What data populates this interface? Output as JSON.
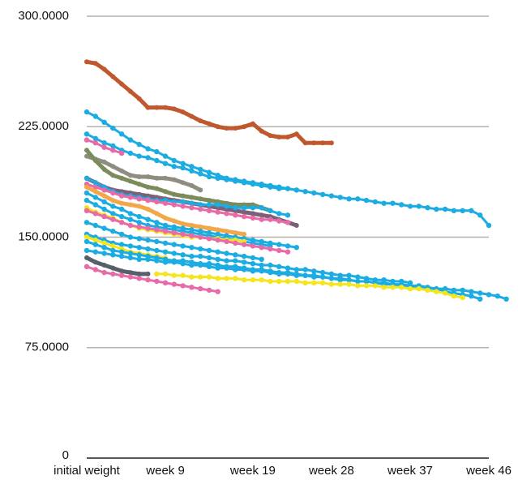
{
  "chart_data": {
    "type": "line",
    "title": "",
    "xlabel": "",
    "ylabel": "",
    "ylim": [
      0,
      300
    ],
    "xlim": [
      0,
      46
    ],
    "y_ticks": [
      {
        "value": 0,
        "label": "0"
      },
      {
        "value": 75,
        "label": "75.0000"
      },
      {
        "value": 150,
        "label": "150.0000"
      },
      {
        "value": 225,
        "label": "225.0000"
      },
      {
        "value": 300,
        "label": "300.0000"
      }
    ],
    "x_ticks": [
      {
        "value": 0,
        "label": "initial weight"
      },
      {
        "value": 9,
        "label": "week 9"
      },
      {
        "value": 19,
        "label": "week 19"
      },
      {
        "value": 28,
        "label": "week 28"
      },
      {
        "value": 37,
        "label": "week 37"
      },
      {
        "value": 46,
        "label": "week 46"
      }
    ],
    "grid": true,
    "legend": "none",
    "series": [
      {
        "color": "#c0582f",
        "width": 5,
        "x": [
          0,
          1,
          2,
          3,
          4,
          5,
          6,
          7,
          8,
          9,
          10,
          11,
          12,
          13,
          14,
          15,
          16,
          17,
          18,
          19,
          20,
          21,
          22,
          23,
          24,
          25,
          26,
          27,
          28
        ],
        "y": [
          269,
          268,
          264,
          259,
          254,
          249,
          244,
          238,
          238,
          238,
          237,
          235,
          232,
          229,
          227,
          225,
          224,
          224,
          225,
          227,
          222,
          219,
          218,
          218,
          220,
          214,
          214,
          214,
          214
        ]
      },
      {
        "color": "#1bace2",
        "width": 3,
        "x": [
          0,
          1,
          2,
          3,
          4,
          5,
          6,
          7,
          8,
          9,
          10,
          11,
          12,
          13,
          14,
          15,
          16,
          17,
          18,
          19,
          20,
          21,
          22,
          23,
          24,
          25,
          26,
          27,
          28,
          29,
          30,
          31,
          32,
          33,
          34,
          35,
          36,
          37,
          38,
          39,
          40,
          41,
          42,
          43,
          44,
          45,
          46
        ],
        "y": [
          235,
          232,
          228,
          224,
          220,
          216,
          213,
          210,
          208,
          205,
          202,
          200,
          198,
          196,
          194,
          192,
          190,
          189,
          188,
          187,
          186,
          185,
          184,
          183,
          182,
          181,
          180,
          179,
          178,
          177,
          176,
          176,
          175,
          174,
          173,
          173,
          172,
          171,
          171,
          170,
          169,
          169,
          168,
          168,
          168,
          165,
          158
        ]
      },
      {
        "color": "#1bace2",
        "width": 3,
        "x": [
          0,
          1,
          2,
          3,
          4,
          5,
          6,
          7,
          8,
          9,
          10,
          11,
          12,
          13,
          14,
          15,
          16,
          17,
          18,
          19,
          20,
          21,
          22,
          23,
          24
        ],
        "y": [
          220,
          217,
          214,
          212,
          209,
          207,
          205,
          204,
          202,
          200,
          198,
          197,
          195,
          193,
          191,
          190,
          189,
          188,
          187,
          186,
          185,
          184,
          183,
          183,
          182
        ]
      },
      {
        "color": "#e96aa8",
        "width": 3,
        "x": [
          0,
          1,
          2,
          3,
          4
        ],
        "y": [
          216,
          214,
          211,
          209,
          207
        ]
      },
      {
        "color": "#8f8c80",
        "width": 5,
        "x": [
          0,
          1,
          2,
          3,
          4,
          5,
          6,
          7,
          8,
          9,
          10,
          11,
          12,
          13
        ],
        "y": [
          205,
          203,
          201,
          198,
          195,
          192,
          191,
          191,
          190,
          190,
          189,
          187,
          185,
          182
        ]
      },
      {
        "color": "#7b8b5a",
        "width": 5,
        "x": [
          0,
          1,
          2,
          3,
          4,
          5,
          6,
          7,
          8,
          9,
          10,
          11,
          12,
          13,
          14,
          15,
          16,
          17,
          18,
          19,
          20,
          21
        ],
        "y": [
          209,
          202,
          196,
          192,
          190,
          188,
          186,
          184,
          183,
          181,
          179,
          178,
          177,
          176,
          175,
          174,
          173,
          172,
          172,
          172,
          170,
          168
        ]
      },
      {
        "color": "#7e5f78",
        "width": 5,
        "x": [
          0,
          1,
          2,
          3,
          4,
          5,
          6,
          7,
          8,
          9,
          10,
          11,
          12,
          13,
          14,
          15,
          16,
          17,
          18,
          19,
          20,
          21,
          22,
          23,
          24
        ],
        "y": [
          190,
          187,
          184,
          182,
          181,
          180,
          179,
          178,
          177,
          176,
          175,
          174,
          173,
          172,
          171,
          170,
          169,
          168,
          167,
          166,
          165,
          164,
          162,
          160,
          158
        ]
      },
      {
        "color": "#1bace2",
        "width": 3,
        "x": [
          0,
          1,
          2,
          3,
          4,
          5,
          6,
          7,
          8,
          9,
          10,
          11,
          12,
          13,
          14,
          15,
          16,
          17,
          18,
          19,
          20,
          21,
          22,
          23
        ],
        "y": [
          190,
          187,
          184,
          181,
          179,
          178,
          177,
          176,
          175,
          175,
          174,
          174,
          173,
          172,
          172,
          172,
          171,
          170,
          170,
          170,
          170,
          168,
          166,
          165
        ]
      },
      {
        "color": "#e96aa8",
        "width": 3,
        "x": [
          0,
          1,
          2,
          3,
          4,
          5,
          6,
          7,
          8,
          9,
          10,
          11,
          12,
          13,
          14,
          15,
          16,
          17,
          18,
          19,
          20,
          21,
          22,
          23
        ],
        "y": [
          186,
          184,
          182,
          180,
          178,
          177,
          176,
          175,
          174,
          173,
          172,
          171,
          170,
          169,
          168,
          167,
          166,
          165,
          164,
          163,
          162,
          162,
          161,
          160
        ]
      },
      {
        "color": "#f2a84a",
        "width": 5,
        "x": [
          0,
          1,
          2,
          3,
          4,
          5,
          6,
          7,
          8,
          9,
          10,
          11,
          12,
          13,
          14,
          15,
          16,
          17,
          18
        ],
        "y": [
          184,
          181,
          178,
          175,
          173,
          172,
          171,
          169,
          166,
          163,
          161,
          159,
          158,
          157,
          156,
          155,
          154,
          153,
          152
        ]
      },
      {
        "color": "#1bace2",
        "width": 3,
        "x": [
          0,
          1,
          2,
          3,
          4,
          5,
          6,
          7,
          8,
          9,
          10,
          11,
          12,
          13,
          14,
          15,
          16,
          17,
          18,
          19,
          20,
          21,
          22,
          23,
          24
        ],
        "y": [
          180,
          177,
          174,
          171,
          169,
          166,
          164,
          162,
          160,
          158,
          157,
          156,
          155,
          154,
          153,
          152,
          151,
          150,
          149,
          148,
          147,
          146,
          145,
          144,
          143
        ]
      },
      {
        "color": "#1bace2",
        "width": 3,
        "x": [
          0,
          1,
          2,
          3,
          4,
          5,
          6,
          7,
          8,
          9,
          10,
          11,
          12,
          13,
          14,
          15,
          16,
          17,
          18,
          19,
          20,
          21
        ],
        "y": [
          175,
          172,
          169,
          166,
          164,
          162,
          160,
          158,
          157,
          156,
          155,
          154,
          153,
          152,
          151,
          150,
          149,
          148,
          147,
          146,
          145,
          144
        ]
      },
      {
        "color": "#f5e51f",
        "width": 3,
        "x": [
          0,
          1,
          2,
          3,
          4,
          5,
          6,
          7,
          8,
          9,
          10,
          11,
          12,
          13,
          14,
          15,
          16,
          17,
          18
        ],
        "y": [
          170,
          167,
          165,
          163,
          160,
          158,
          156,
          155,
          154,
          153,
          152,
          151,
          150,
          150,
          149,
          149,
          148,
          148,
          147
        ]
      },
      {
        "color": "#e96aa8",
        "width": 3,
        "x": [
          0,
          1,
          2,
          3,
          4,
          5,
          6,
          7,
          8,
          9,
          10,
          11,
          12,
          13,
          14,
          15,
          16,
          17,
          18,
          19,
          20,
          21,
          22,
          23
        ],
        "y": [
          168,
          166,
          164,
          162,
          160,
          158,
          157,
          156,
          155,
          154,
          153,
          152,
          151,
          150,
          149,
          148,
          147,
          146,
          145,
          144,
          143,
          142,
          141,
          140
        ]
      },
      {
        "color": "#1bace2",
        "width": 3,
        "x": [
          0,
          1,
          2,
          3,
          4,
          5,
          6,
          7,
          8,
          9,
          10,
          11,
          12,
          13,
          14,
          15,
          16,
          17,
          18,
          19,
          20
        ],
        "y": [
          160,
          158,
          156,
          154,
          152,
          150,
          149,
          148,
          147,
          146,
          145,
          144,
          143,
          142,
          141,
          140,
          139,
          138,
          137,
          136,
          135
        ]
      },
      {
        "color": "#1bace2",
        "width": 3,
        "x": [
          0,
          1,
          2,
          3,
          4,
          5,
          6,
          7,
          8,
          9,
          10,
          11,
          12,
          13,
          14,
          15,
          16,
          17,
          18,
          19,
          20,
          21,
          22,
          23,
          24,
          25,
          26,
          27,
          28,
          29,
          30,
          31,
          32,
          33,
          34,
          35,
          36,
          37
        ],
        "y": [
          152,
          150,
          148,
          146,
          145,
          144,
          143,
          142,
          141,
          140,
          139,
          138,
          137,
          137,
          136,
          135,
          134,
          134,
          133,
          132,
          131,
          131,
          130,
          129,
          128,
          128,
          127,
          126,
          125,
          124,
          124,
          123,
          122,
          121,
          121,
          120,
          120,
          119
        ]
      },
      {
        "color": "#f5e51f",
        "width": 3,
        "x": [
          0,
          1,
          2,
          3,
          4,
          5,
          6,
          7,
          8,
          9
        ],
        "y": [
          150,
          148,
          146,
          144,
          142,
          140,
          139,
          138,
          137,
          136
        ]
      },
      {
        "color": "#1bace2",
        "width": 3,
        "x": [
          0,
          1,
          2,
          3,
          4,
          5,
          6,
          7,
          8,
          9,
          10,
          11,
          12,
          13,
          14,
          15,
          16,
          17,
          18,
          19,
          20,
          21,
          22,
          23,
          24,
          25,
          26,
          27,
          28,
          29,
          30,
          31,
          32,
          33,
          34,
          35,
          36,
          37,
          38,
          39,
          40,
          41,
          42,
          43,
          44,
          45
        ],
        "y": [
          147,
          145,
          143,
          141,
          140,
          139,
          138,
          137,
          136,
          135,
          134,
          134,
          133,
          132,
          132,
          131,
          130,
          130,
          129,
          128,
          128,
          127,
          126,
          126,
          125,
          124,
          124,
          123,
          122,
          122,
          121,
          120,
          120,
          119,
          118,
          118,
          117,
          116,
          116,
          115,
          114,
          113,
          112,
          111,
          110,
          108
        ]
      },
      {
        "color": "#1bace2",
        "width": 3,
        "x": [
          0,
          1,
          2,
          3,
          4,
          5,
          6,
          7,
          8,
          9,
          10,
          11,
          12,
          13,
          14,
          15,
          16,
          17,
          18,
          19,
          20,
          21,
          22,
          23,
          24,
          25,
          26,
          27,
          28,
          29,
          30,
          31,
          32,
          33,
          34,
          35,
          36,
          37,
          38,
          39,
          40,
          41,
          42,
          43,
          44,
          45,
          46,
          47,
          48
        ],
        "y": [
          141,
          140,
          139,
          138,
          137,
          136,
          135,
          135,
          134,
          133,
          133,
          132,
          131,
          131,
          130,
          129,
          129,
          128,
          128,
          127,
          127,
          126,
          125,
          125,
          124,
          124,
          123,
          123,
          122,
          121,
          121,
          120,
          120,
          119,
          119,
          118,
          118,
          117,
          117,
          116,
          115,
          115,
          114,
          114,
          113,
          112,
          111,
          110,
          108
        ]
      },
      {
        "color": "#f5e51f",
        "width": 3,
        "x": [
          8,
          9,
          10,
          11,
          12,
          13,
          14,
          15,
          16,
          17,
          18,
          19,
          20,
          21,
          22,
          23,
          24,
          25,
          26,
          27,
          28,
          29,
          30,
          31,
          32,
          33,
          34,
          35,
          36,
          37,
          38,
          39,
          40,
          41,
          42,
          43
        ],
        "y": [
          125,
          125,
          124,
          124,
          123,
          123,
          123,
          122,
          122,
          122,
          121,
          121,
          121,
          120,
          120,
          120,
          120,
          119,
          119,
          119,
          118,
          118,
          118,
          117,
          117,
          117,
          116,
          116,
          116,
          115,
          115,
          114,
          113,
          112,
          110,
          109
        ]
      },
      {
        "color": "#56606b",
        "width": 5,
        "x": [
          0,
          1,
          2,
          3,
          4,
          5,
          6,
          7
        ],
        "y": [
          136,
          133,
          131,
          129,
          127,
          126,
          125,
          125
        ]
      },
      {
        "color": "#e96aa8",
        "width": 3,
        "x": [
          0,
          1,
          2,
          3,
          4,
          5,
          6,
          7,
          8,
          9,
          10,
          11,
          12,
          13,
          14,
          15
        ],
        "y": [
          130,
          128,
          126,
          125,
          124,
          123,
          122,
          121,
          120,
          119,
          118,
          117,
          116,
          115,
          114,
          113
        ]
      }
    ]
  }
}
